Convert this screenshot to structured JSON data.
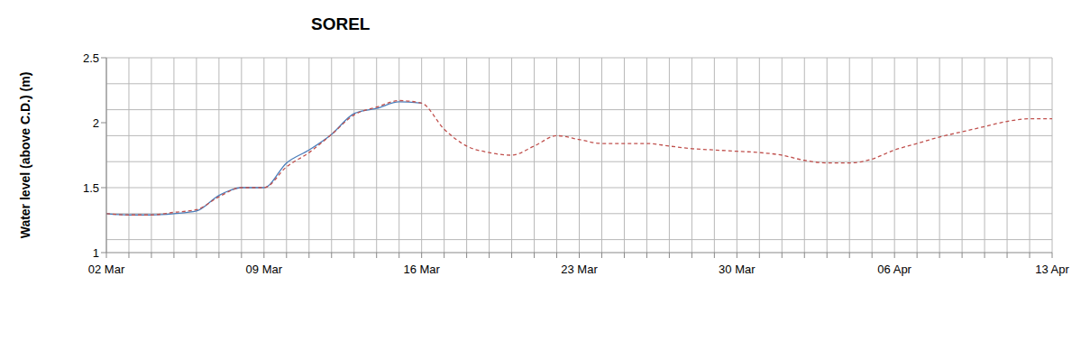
{
  "chart_data": {
    "type": "line",
    "title": "SOREL",
    "y_label": "Water level (above C.D.) (m)",
    "categories": [
      "02 Mar",
      null,
      null,
      null,
      null,
      null,
      null,
      "09 Mar",
      null,
      null,
      null,
      null,
      null,
      null,
      "16 Mar",
      null,
      null,
      null,
      null,
      null,
      null,
      "23 Mar",
      null,
      null,
      null,
      null,
      null,
      null,
      "30 Mar",
      null,
      null,
      null,
      null,
      null,
      null,
      "06 Apr",
      null,
      null,
      null,
      null,
      null,
      null,
      "13 Apr"
    ],
    "series": [
      {
        "color": "#4a7ebb",
        "line_style": "solid",
        "values": [
          1.3,
          1.29,
          1.29,
          1.3,
          1.32,
          1.44,
          1.5,
          1.5,
          1.69,
          1.79,
          1.91,
          2.07,
          2.11,
          2.16,
          2.15,
          null,
          null,
          null,
          null,
          null,
          null,
          null,
          null,
          null,
          null,
          null,
          null,
          null,
          null,
          null,
          null,
          null,
          null,
          null,
          null,
          null,
          null,
          null,
          null,
          null,
          null,
          null,
          null
        ]
      },
      {
        "color": "#c0504d",
        "line_style": "dashed",
        "values": [
          1.3,
          1.29,
          1.29,
          1.31,
          1.33,
          1.43,
          1.5,
          1.5,
          1.66,
          1.77,
          1.91,
          2.06,
          2.12,
          2.17,
          2.15,
          1.95,
          1.82,
          1.77,
          1.75,
          1.82,
          1.9,
          1.87,
          1.84,
          1.84,
          1.84,
          1.82,
          1.8,
          1.79,
          1.78,
          1.77,
          1.75,
          1.71,
          1.69,
          1.69,
          1.72,
          1.79,
          1.84,
          1.89,
          1.93,
          1.97,
          2.01,
          2.03,
          2.03
        ]
      }
    ],
    "ylim": [
      1,
      2.5
    ],
    "yticks": [
      1,
      1.5,
      2,
      2.5
    ],
    "grid": true
  }
}
